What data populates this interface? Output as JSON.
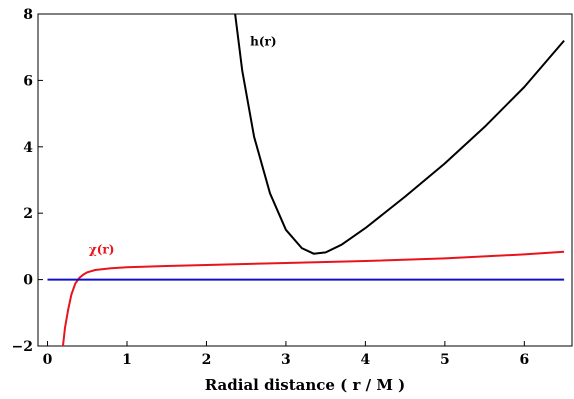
{
  "chart_data": {
    "type": "line",
    "xlabel": "Radial distance ( r / M )",
    "ylabel": "",
    "xlim": [
      -0.12,
      6.6
    ],
    "ylim": [
      -2,
      8
    ],
    "xticks": [
      0,
      1,
      2,
      3,
      4,
      5,
      6
    ],
    "yticks": [
      -2,
      0,
      2,
      4,
      6,
      8
    ],
    "series": [
      {
        "name": "h(r)",
        "color": "#000000",
        "x": [
          2.35,
          2.45,
          2.6,
          2.8,
          3.0,
          3.2,
          3.35,
          3.5,
          3.7,
          4.0,
          4.5,
          5.0,
          5.5,
          6.0,
          6.5
        ],
        "y": [
          8.2,
          6.3,
          4.3,
          2.6,
          1.5,
          0.95,
          0.78,
          0.82,
          1.05,
          1.55,
          2.5,
          3.5,
          4.6,
          5.8,
          7.2
        ]
      },
      {
        "name": "χ(r)",
        "color": "#e8141c",
        "x": [
          0.19,
          0.22,
          0.26,
          0.3,
          0.35,
          0.4,
          0.45,
          0.5,
          0.6,
          0.8,
          1.0,
          1.5,
          2.0,
          3.0,
          4.0,
          5.0,
          6.0,
          6.5
        ],
        "y": [
          -2.1,
          -1.45,
          -0.9,
          -0.45,
          -0.12,
          0.05,
          0.15,
          0.22,
          0.29,
          0.34,
          0.37,
          0.41,
          0.44,
          0.5,
          0.56,
          0.64,
          0.76,
          0.84
        ]
      },
      {
        "name": "",
        "color": "#1010c8",
        "x": [
          0,
          6.5
        ],
        "y": [
          0,
          0
        ]
      }
    ],
    "annotations": [
      {
        "text": "h(r)",
        "x": 2.55,
        "y": 7.05,
        "color": "#000000"
      },
      {
        "text": "χ(r)",
        "x": 0.52,
        "y": 0.78,
        "color": "#e8141c"
      }
    ],
    "grid": false,
    "legend": "none"
  }
}
